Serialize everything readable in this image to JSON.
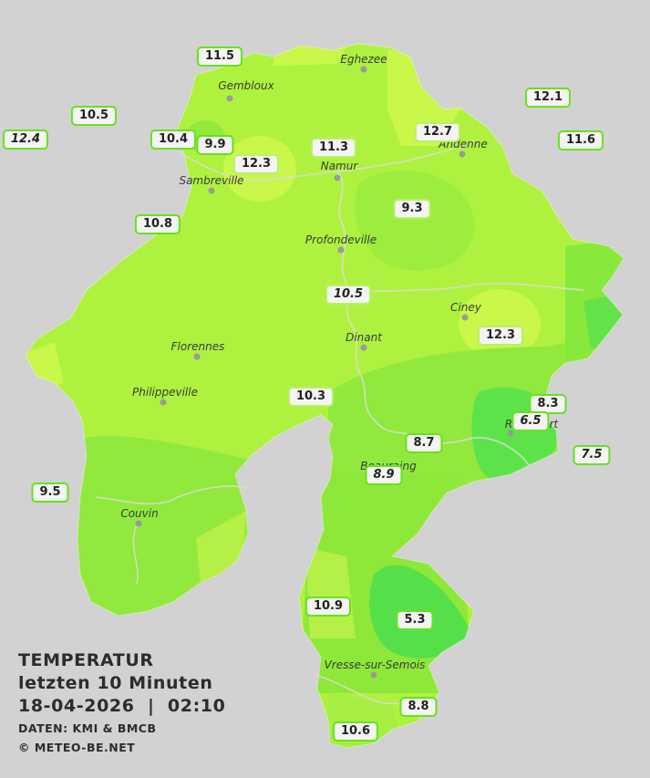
{
  "legend": {
    "title": "TEMPERATUR",
    "period": "letzten 10 Minuten",
    "datetime": "18-04-2026  |  02:10",
    "source": "DATEN: KMI & BMCB",
    "copyright": "© METEO-BE.NET"
  },
  "colors": {
    "background": "#d2d2d2",
    "region_base": "#aef23f",
    "warm_zone": "#c9f74a",
    "cool_zone": "#8ee83a",
    "cold_zone": "#52e04a",
    "label_border": "#66e21d"
  },
  "cities": [
    {
      "name": "Eghezee"
    },
    {
      "name": "Gembloux"
    },
    {
      "name": "Andenne"
    },
    {
      "name": "Namur"
    },
    {
      "name": "Sambreville"
    },
    {
      "name": "Profondeville"
    },
    {
      "name": "Ciney"
    },
    {
      "name": "Dinant"
    },
    {
      "name": "Florennes"
    },
    {
      "name": "Philippeville"
    },
    {
      "name": "Rochefort"
    },
    {
      "name": "Beauraing"
    },
    {
      "name": "Couvin"
    },
    {
      "name": "Vresse-sur-Semois"
    }
  ],
  "readings": [
    {
      "value": "11.5"
    },
    {
      "value": "12.1"
    },
    {
      "value": "10.5"
    },
    {
      "value": "12.4"
    },
    {
      "value": "10.4"
    },
    {
      "value": "9.9"
    },
    {
      "value": "12.3"
    },
    {
      "value": "11.3"
    },
    {
      "value": "12.7"
    },
    {
      "value": "11.6"
    },
    {
      "value": "10.8"
    },
    {
      "value": "9.3"
    },
    {
      "value": "10.5"
    },
    {
      "value": "12.3"
    },
    {
      "value": "10.3"
    },
    {
      "value": "8.3"
    },
    {
      "value": "6.5"
    },
    {
      "value": "8.7"
    },
    {
      "value": "7.5"
    },
    {
      "value": "8.9"
    },
    {
      "value": "9.5"
    },
    {
      "value": "10.9"
    },
    {
      "value": "5.3"
    },
    {
      "value": "8.8"
    },
    {
      "value": "10.6"
    }
  ]
}
